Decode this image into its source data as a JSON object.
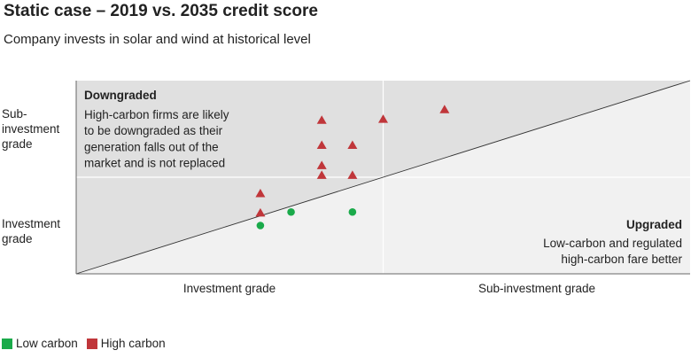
{
  "title": "Static case – 2019 vs. 2035 credit score",
  "subtitle": "Company invests in solar and wind at historical level",
  "y_labels": {
    "top": [
      "Sub-",
      "investment",
      "grade"
    ],
    "bottom": [
      "Investment",
      "grade"
    ]
  },
  "x_labels": {
    "left": "Investment grade",
    "right": "Sub-investment grade"
  },
  "annotations": {
    "downgraded": {
      "heading": "Downgraded",
      "lines": [
        "High-carbon firms are likely",
        "to be downgraded as their",
        "generation falls out of the",
        "market and is not replaced"
      ]
    },
    "upgraded": {
      "heading": "Upgraded",
      "lines": [
        "Low-carbon and regulated",
        "high-carbon fare better"
      ]
    }
  },
  "legend": [
    {
      "label": "Low carbon",
      "color": "#1aaa4a",
      "marker": "circle"
    },
    {
      "label": "High carbon",
      "color": "#c0363a",
      "marker": "triangle"
    }
  ],
  "chart_data": {
    "type": "scatter",
    "title": "Static case – 2019 vs. 2035 credit score",
    "subtitle": "Company invests in solar and wind at historical level",
    "xlim": [
      0,
      20
    ],
    "ylim": [
      0,
      20
    ],
    "grid": false,
    "legend_position": "bottom-left",
    "series": [
      {
        "name": "Low carbon",
        "color": "#1aaa4a",
        "points": [
          {
            "x": 6.0,
            "y": 5.0
          },
          {
            "x": 7.0,
            "y": 6.4
          },
          {
            "x": 9.0,
            "y": 6.4
          }
        ]
      },
      {
        "name": "High carbon",
        "color": "#c0363a",
        "points": [
          {
            "x": 6.0,
            "y": 8.3
          },
          {
            "x": 6.0,
            "y": 6.3
          },
          {
            "x": 8.0,
            "y": 15.9
          },
          {
            "x": 8.0,
            "y": 13.3
          },
          {
            "x": 8.0,
            "y": 11.2
          },
          {
            "x": 8.0,
            "y": 10.2
          },
          {
            "x": 9.0,
            "y": 13.3
          },
          {
            "x": 9.0,
            "y": 10.2
          },
          {
            "x": 10.0,
            "y": 16.0
          },
          {
            "x": 12.0,
            "y": 17.0
          }
        ]
      }
    ]
  }
}
